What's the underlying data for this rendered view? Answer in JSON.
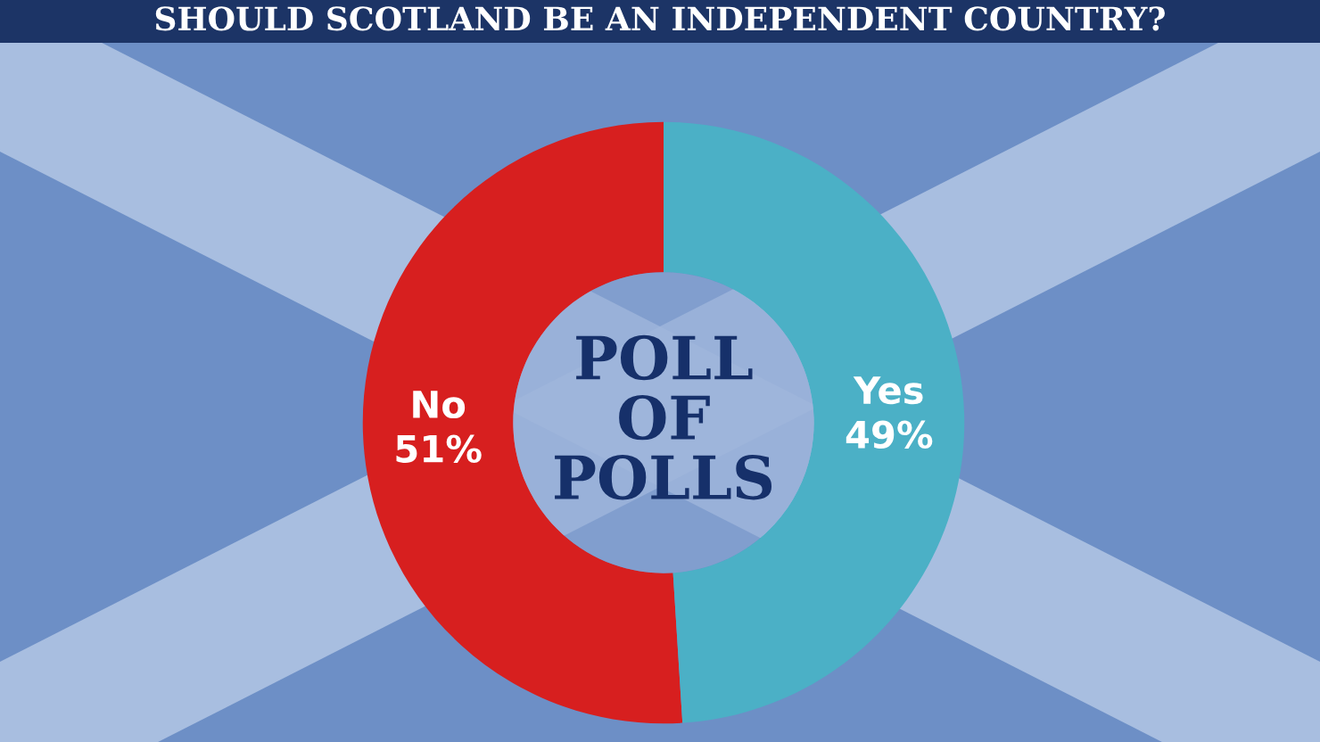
{
  "chart_data": {
    "type": "donut",
    "title": "SHOULD SCOTLAND BE AN INDEPENDENT COUNTRY?",
    "categories": [
      "No",
      "Yes"
    ],
    "values": [
      51,
      49
    ],
    "colors": [
      "#d71f1f",
      "#4bb0c6"
    ],
    "value_labels": [
      "51%",
      "49%"
    ],
    "annotations": [
      "POLL\nOF\nPOLLS"
    ]
  }
}
